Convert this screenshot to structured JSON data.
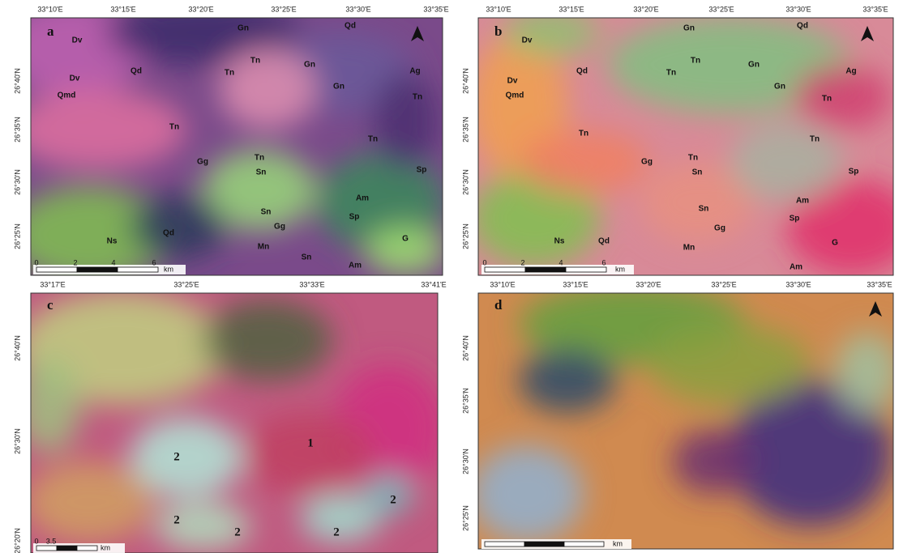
{
  "panels": [
    {
      "label": "a",
      "lon_ticks": [
        "33°10'E",
        "33°15'E",
        "33°20'E",
        "33°25'E",
        "33°30'E",
        "33°35'E"
      ],
      "lat_ticks": [
        "26°40'N",
        "26°35'N",
        "26°30'N",
        "26°25'N"
      ],
      "features": [
        "Dv",
        "Gn",
        "Qd",
        "Tn",
        "Gn",
        "Ag",
        "Dv",
        "Qd",
        "Tn",
        "Gn",
        "Tn",
        "Qmd",
        "Tn",
        "Tn",
        "Tn",
        "Gg",
        "Sn",
        "Sp",
        "Am",
        "Sn",
        "Sp",
        "Gg",
        "Qd",
        "Ns",
        "Mn",
        "G",
        "Sn",
        "Am"
      ],
      "scale": [
        "0",
        "2",
        "4",
        "6",
        "km"
      ]
    },
    {
      "label": "b",
      "lon_ticks": [
        "33°10'E",
        "33°15'E",
        "33°20'E",
        "33°25'E",
        "33°30'E",
        "33°35'E"
      ],
      "lat_ticks": [
        "26°40'N",
        "26°35'N",
        "26°30'N",
        "26°25'N"
      ],
      "features": [
        "Dv",
        "Gn",
        "Qd",
        "Tn",
        "Gn",
        "Ag",
        "Dv",
        "Qd",
        "Tn",
        "Gn",
        "Tn",
        "Qmd",
        "Tn",
        "Tn",
        "Tn",
        "Gg",
        "Sn",
        "Sp",
        "Am",
        "Sn",
        "Sp",
        "Gg",
        "Qd",
        "Ns",
        "Mn",
        "G",
        "Am"
      ],
      "scale": [
        "0",
        "2",
        "4",
        "6",
        "km"
      ]
    },
    {
      "label": "c",
      "lon_ticks": [
        "33°17'E",
        "33°25'E",
        "33°33'E",
        "33°41'E"
      ],
      "lat_ticks": [
        "26°40'N",
        "26°30'N",
        "26°20'N"
      ],
      "features": [
        "1",
        "2",
        "2",
        "2",
        "2",
        "2"
      ],
      "scale": [
        "0",
        "3.5",
        "km"
      ]
    },
    {
      "label": "d",
      "lon_ticks": [
        "33°10'E",
        "33°15'E",
        "33°20'E",
        "33°25'E",
        "33°30'E",
        "33°35'E"
      ],
      "lat_ticks": [
        "26°40'N",
        "26°35'N",
        "26°30'N",
        "26°25'N"
      ],
      "features": [],
      "scale": [
        "km"
      ]
    }
  ]
}
